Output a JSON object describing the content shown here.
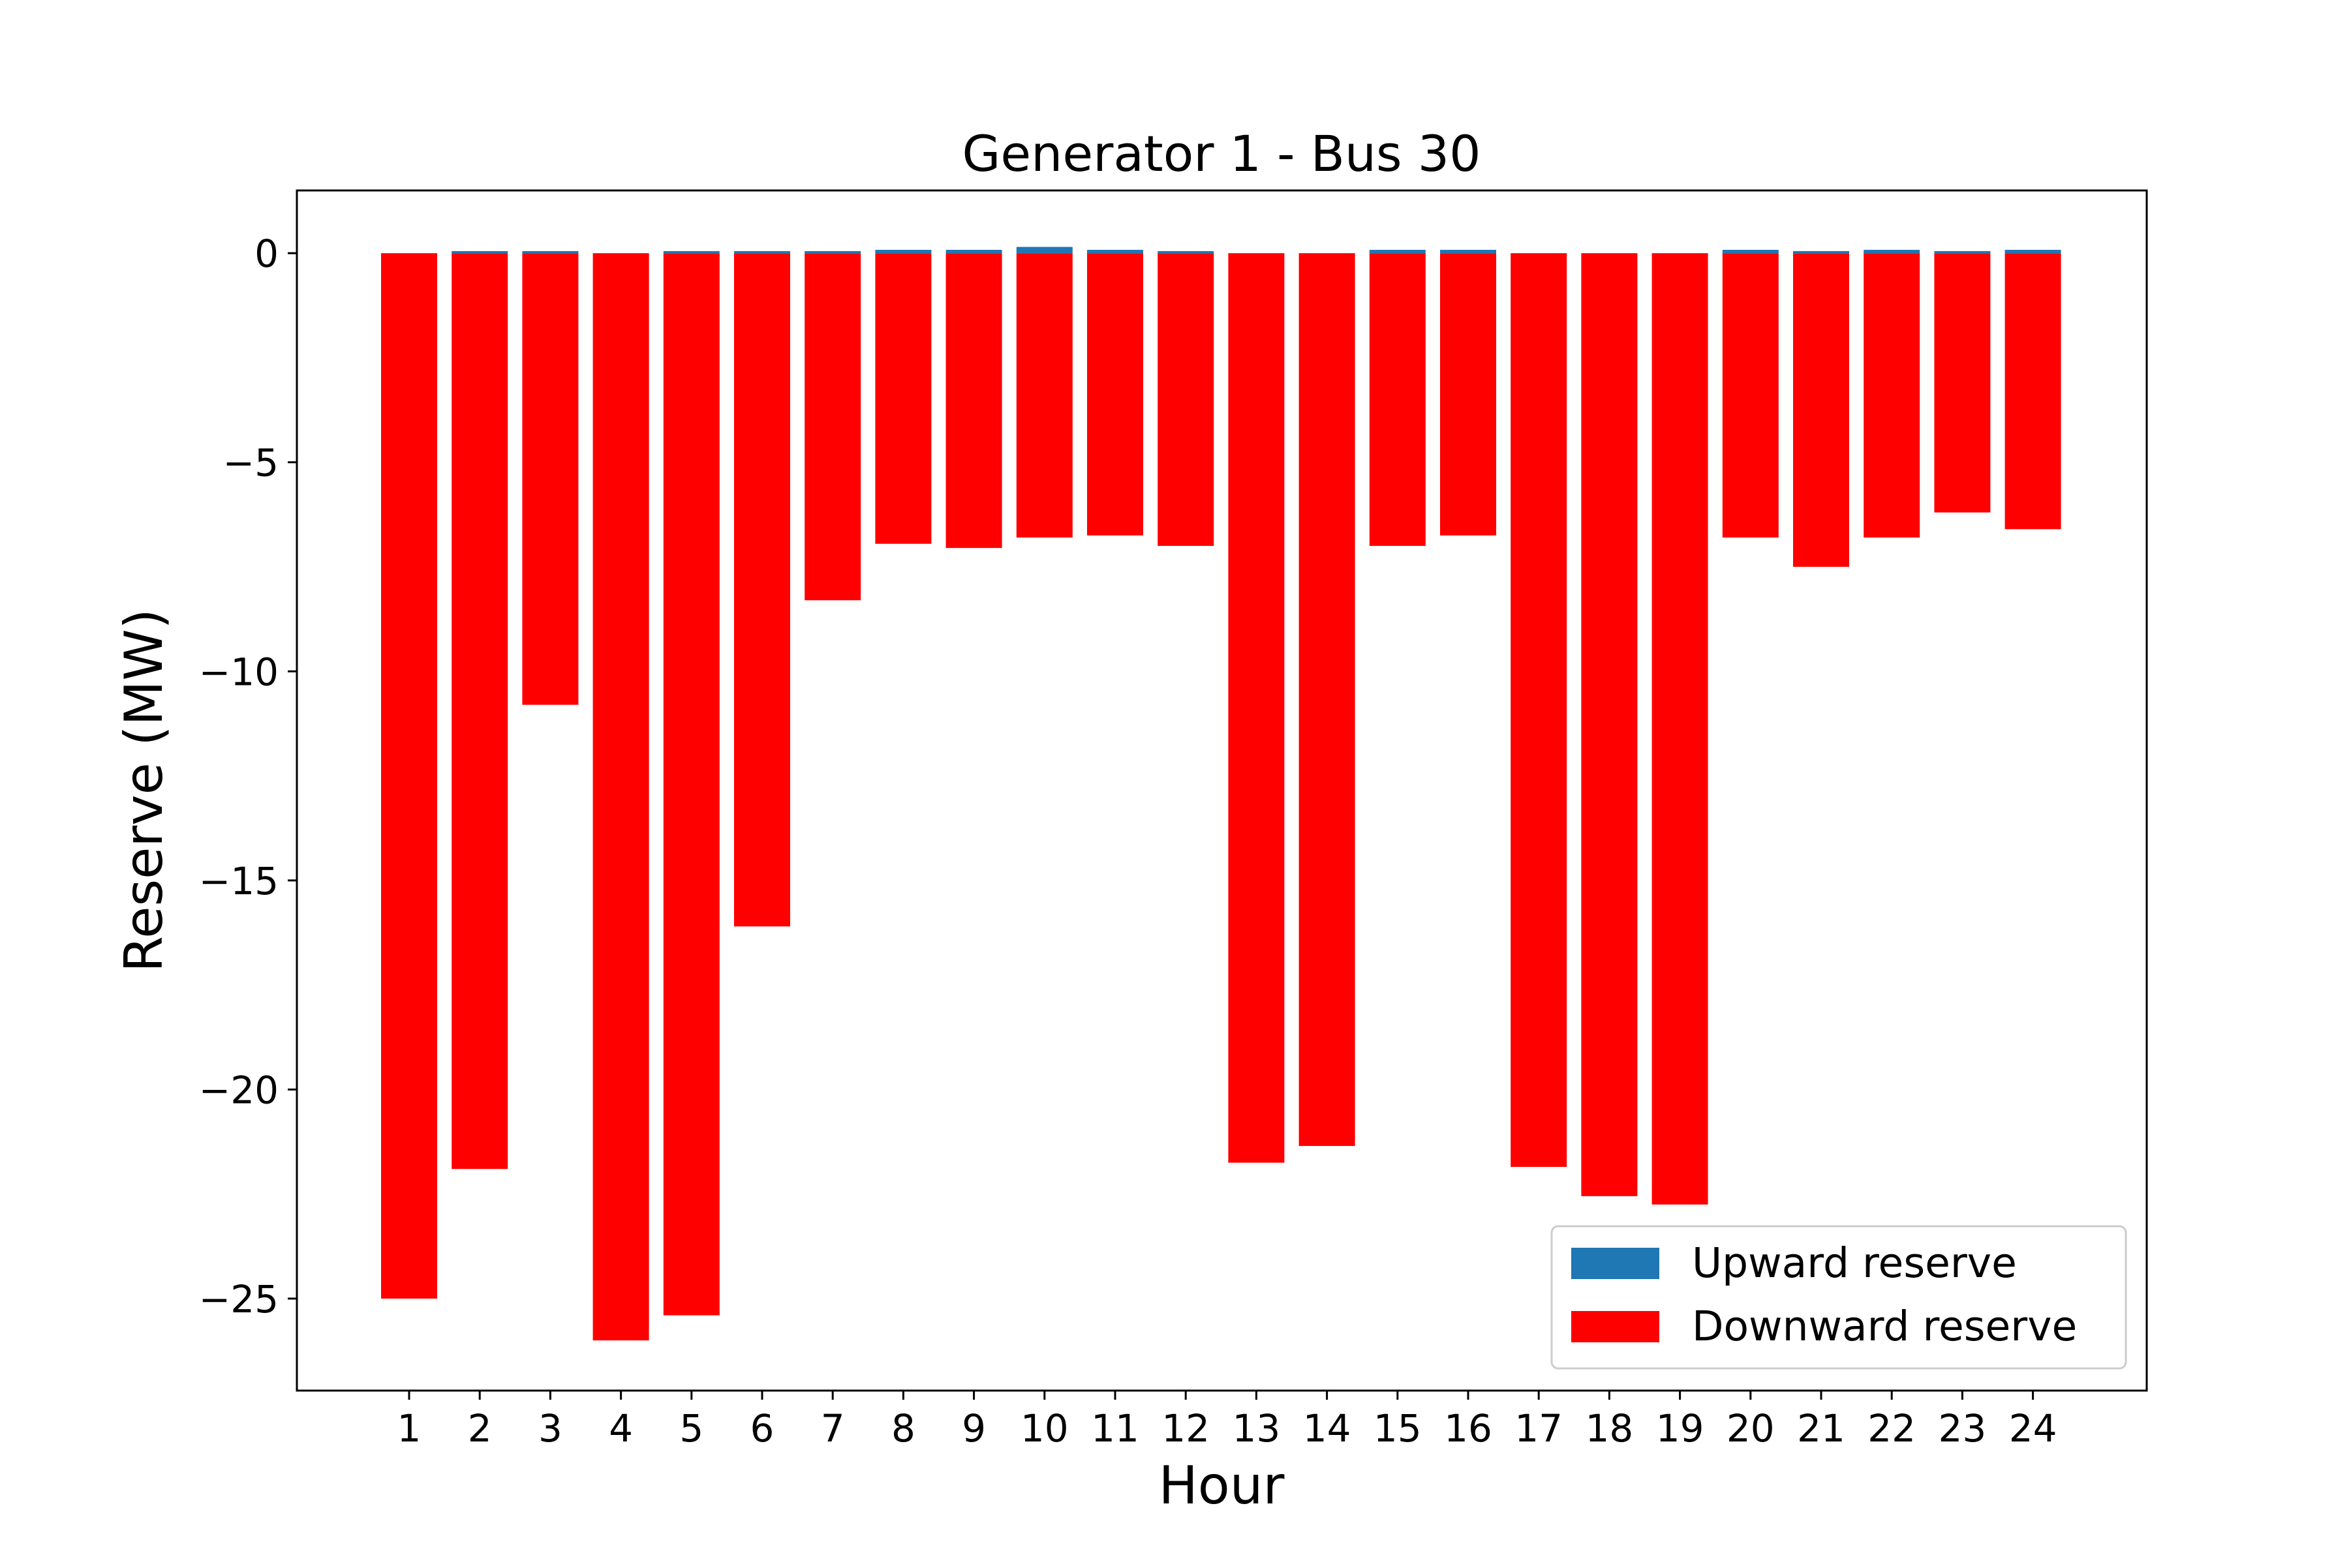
{
  "chart_data": {
    "type": "bar",
    "title": "Generator 1 - Bus 30",
    "xlabel": "Hour",
    "ylabel": "Reserve (MW)",
    "categories": [
      "1",
      "2",
      "3",
      "4",
      "5",
      "6",
      "7",
      "8",
      "9",
      "10",
      "11",
      "12",
      "13",
      "14",
      "15",
      "16",
      "17",
      "18",
      "19",
      "20",
      "21",
      "22",
      "23",
      "24"
    ],
    "ylim": [
      -27.2,
      1.5
    ],
    "yticks": [
      0,
      -5,
      -10,
      -15,
      -20,
      -25
    ],
    "ytick_labels": [
      "0",
      "−5",
      "−10",
      "−15",
      "−20",
      "−25"
    ],
    "grid": false,
    "legend_position": "lower-right",
    "series": [
      {
        "name": "Upward reserve",
        "color": "#1f77b4",
        "values": [
          0.0,
          0.05,
          0.05,
          0.0,
          0.05,
          0.05,
          0.05,
          0.08,
          0.08,
          0.15,
          0.08,
          0.05,
          0.0,
          0.0,
          0.08,
          0.08,
          0.0,
          0.0,
          0.0,
          0.08,
          0.05,
          0.08,
          0.05,
          0.08
        ]
      },
      {
        "name": "Downward reserve",
        "color": "#ff0000",
        "values": [
          -25.0,
          -21.9,
          -10.8,
          -26.0,
          -25.4,
          -16.1,
          -8.3,
          -6.95,
          -7.05,
          -6.8,
          -6.75,
          -7.0,
          -21.75,
          -21.35,
          -7.0,
          -6.75,
          -21.85,
          -22.55,
          -22.75,
          -6.8,
          -7.5,
          -6.8,
          -6.2,
          -6.6
        ]
      }
    ]
  }
}
